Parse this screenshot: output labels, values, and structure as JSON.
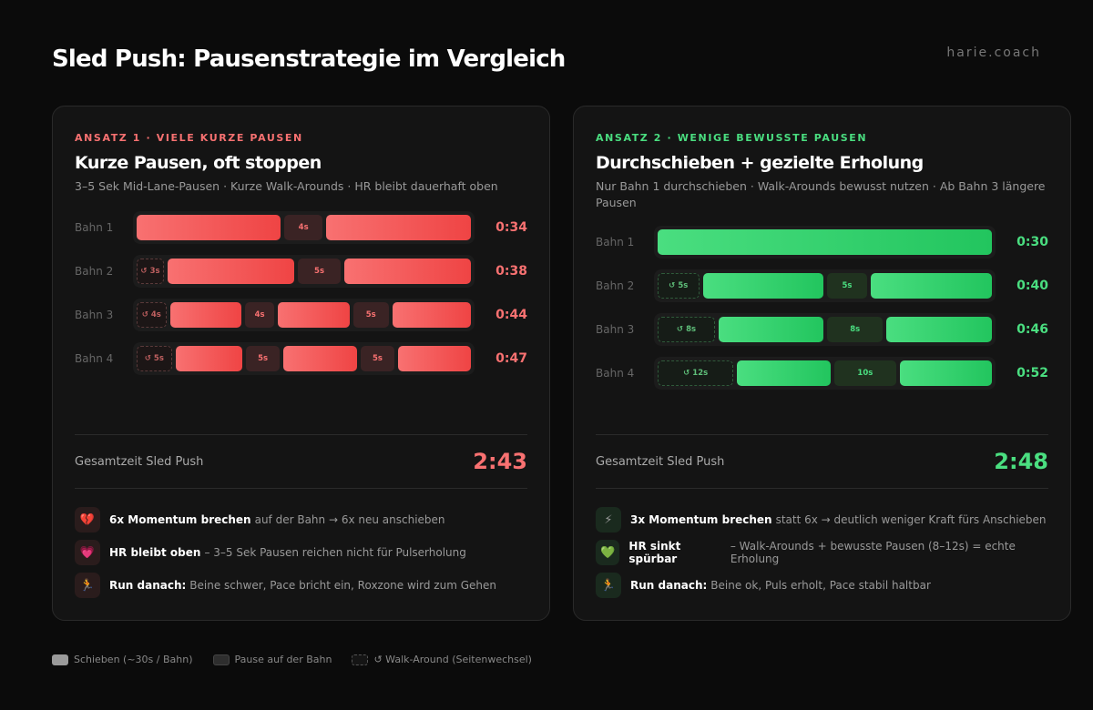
{
  "title": "Sled Push: Pausenstrategie im Vergleich",
  "brand": "harie.coach",
  "colors": {
    "red": "#f87171",
    "green": "#4ade80"
  },
  "cards": [
    {
      "kicker": "ANSATZ 1 · VIELE KURZE PAUSEN",
      "title": "Kurze Pausen, oft stoppen",
      "subtitle": "3–5 Sek Mid-Lane-Pausen · Kurze Walk-Arounds · HR bleibt dauerhaft oben",
      "rows": [
        {
          "label": "Bahn 1",
          "time": "0:34",
          "segments": [
            {
              "type": "push",
              "label": ""
            },
            {
              "type": "pause",
              "label": "4s"
            },
            {
              "type": "push",
              "label": ""
            }
          ]
        },
        {
          "label": "Bahn 2",
          "time": "0:38",
          "segments": [
            {
              "type": "walk",
              "label": "↺ 3s"
            },
            {
              "type": "push",
              "label": ""
            },
            {
              "type": "pause",
              "label": "5s"
            },
            {
              "type": "push",
              "label": ""
            }
          ]
        },
        {
          "label": "Bahn 3",
          "time": "0:44",
          "segments": [
            {
              "type": "walk",
              "label": "↺ 4s"
            },
            {
              "type": "push",
              "label": ""
            },
            {
              "type": "pause",
              "label": "4s"
            },
            {
              "type": "push",
              "label": ""
            },
            {
              "type": "pause",
              "label": "5s"
            },
            {
              "type": "push",
              "label": ""
            }
          ]
        },
        {
          "label": "Bahn 4",
          "time": "0:47",
          "segments": [
            {
              "type": "walk",
              "label": "↺ 5s"
            },
            {
              "type": "push",
              "label": ""
            },
            {
              "type": "pause",
              "label": "5s"
            },
            {
              "type": "push",
              "label": ""
            },
            {
              "type": "pause",
              "label": "5s"
            },
            {
              "type": "push",
              "label": ""
            }
          ]
        }
      ],
      "total_label": "Gesamtzeit Sled Push",
      "total": "2:43",
      "bullets": [
        {
          "icon": "broken-heart",
          "glyph": "💔",
          "bold": "6x Momentum brechen",
          "text": "auf der Bahn → 6x neu anschieben"
        },
        {
          "icon": "heart",
          "glyph": "💗",
          "bold": "HR bleibt oben",
          "text": "– 3–5 Sek Pausen reichen nicht für Pulserholung"
        },
        {
          "icon": "runner",
          "glyph": "🏃",
          "bold": "Run danach:",
          "text": "Beine schwer, Pace bricht ein, Roxzone wird zum Gehen"
        }
      ]
    },
    {
      "kicker": "ANSATZ 2 · WENIGE BEWUSSTE PAUSEN",
      "title": "Durchschieben + gezielte Erholung",
      "subtitle": "Nur Bahn 1 durchschieben · Walk-Arounds bewusst nutzen · Ab Bahn 3 längere Pausen",
      "rows": [
        {
          "label": "Bahn 1",
          "time": "0:30",
          "segments": [
            {
              "type": "push",
              "label": ""
            }
          ]
        },
        {
          "label": "Bahn 2",
          "time": "0:40",
          "segments": [
            {
              "type": "walk",
              "label": "↺ 5s"
            },
            {
              "type": "push",
              "label": ""
            },
            {
              "type": "pause",
              "label": "5s"
            },
            {
              "type": "push",
              "label": ""
            }
          ]
        },
        {
          "label": "Bahn 3",
          "time": "0:46",
          "segments": [
            {
              "type": "walk",
              "label": "↺ 8s"
            },
            {
              "type": "push",
              "label": ""
            },
            {
              "type": "pause",
              "label": "8s"
            },
            {
              "type": "push",
              "label": ""
            }
          ]
        },
        {
          "label": "Bahn 4",
          "time": "0:52",
          "segments": [
            {
              "type": "walk",
              "label": "↺ 12s"
            },
            {
              "type": "push",
              "label": ""
            },
            {
              "type": "pause",
              "label": "10s"
            },
            {
              "type": "push",
              "label": ""
            }
          ]
        }
      ],
      "total_label": "Gesamtzeit Sled Push",
      "total": "2:48",
      "bullets": [
        {
          "icon": "lightning",
          "glyph": "⚡",
          "bold": "3x Momentum brechen",
          "text": "statt 6x → deutlich weniger Kraft fürs Anschieben"
        },
        {
          "icon": "green-heart",
          "glyph": "💚",
          "bold": "HR sinkt spürbar",
          "text": "– Walk-Arounds + bewusste Pausen (8–12s) = echte Erholung"
        },
        {
          "icon": "runner",
          "glyph": "🏃",
          "bold": "Run danach:",
          "text": "Beine ok, Puls erholt, Pace stabil haltbar"
        }
      ]
    }
  ],
  "legend": [
    {
      "type": "push",
      "label": "Schieben (~30s / Bahn)"
    },
    {
      "type": "pause",
      "label": "Pause auf der Bahn"
    },
    {
      "type": "walk",
      "label": "↺ Walk-Around (Seitenwechsel)"
    }
  ]
}
